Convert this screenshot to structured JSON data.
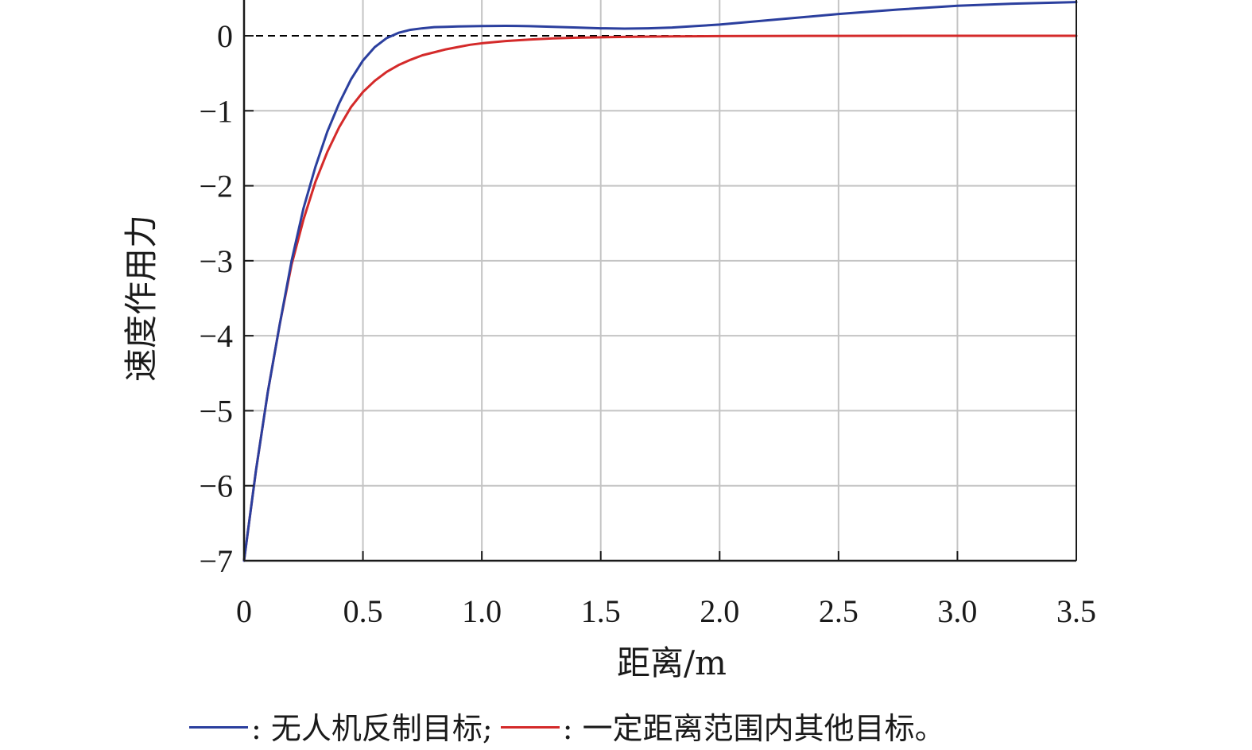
{
  "chart_data": {
    "type": "line",
    "xlabel": "距离/m",
    "ylabel": "速度作用力",
    "xlim": [
      0,
      3.5
    ],
    "ylim": [
      -7,
      0.45
    ],
    "x_ticks": [
      0,
      0.5,
      1.0,
      1.5,
      2.0,
      2.5,
      3.0,
      3.5
    ],
    "x_tick_labels": [
      "0",
      "0.5",
      "1.0",
      "1.5",
      "2.0",
      "2.5",
      "3.0",
      "3.5"
    ],
    "y_ticks": [
      0,
      -1,
      -2,
      -3,
      -4,
      -5,
      -6,
      -7
    ],
    "y_tick_labels": [
      "0",
      "−1",
      "−2",
      "−3",
      "−4",
      "−5",
      "−6",
      "−7"
    ],
    "grid": true,
    "reference_line": {
      "y": 0,
      "style": "dashed",
      "color": "#000000"
    },
    "series": [
      {
        "color": "#2b3f9e",
        "x": [
          0,
          0.05,
          0.1,
          0.15,
          0.2,
          0.25,
          0.3,
          0.35,
          0.4,
          0.45,
          0.5,
          0.55,
          0.6,
          0.65,
          0.7,
          0.75,
          0.8,
          0.85,
          0.9,
          0.95,
          1.0,
          1.05,
          1.1,
          1.15,
          1.2,
          1.3,
          1.4,
          1.5,
          1.6,
          1.7,
          1.8,
          1.9,
          2.0,
          2.25,
          2.5,
          2.75,
          3.0,
          3.25,
          3.5
        ],
        "y": [
          -7.0,
          -5.8,
          -4.75,
          -3.85,
          -3.0,
          -2.3,
          -1.75,
          -1.28,
          -0.9,
          -0.58,
          -0.33,
          -0.15,
          -0.03,
          0.04,
          0.08,
          0.1,
          0.115,
          0.12,
          0.125,
          0.127,
          0.13,
          0.131,
          0.132,
          0.131,
          0.128,
          0.12,
          0.11,
          0.1,
          0.095,
          0.1,
          0.11,
          0.13,
          0.15,
          0.22,
          0.29,
          0.35,
          0.4,
          0.43,
          0.45
        ]
      },
      {
        "color": "#d42a2a",
        "x": [
          0,
          0.05,
          0.1,
          0.15,
          0.2,
          0.25,
          0.3,
          0.35,
          0.4,
          0.45,
          0.5,
          0.55,
          0.6,
          0.65,
          0.7,
          0.75,
          0.8,
          0.85,
          0.9,
          0.95,
          1.0,
          1.1,
          1.2,
          1.3,
          1.4,
          1.5,
          1.6,
          1.8,
          2.0,
          2.5,
          3.0,
          3.5
        ],
        "y": [
          -7.0,
          -5.8,
          -4.75,
          -3.85,
          -3.05,
          -2.45,
          -1.95,
          -1.55,
          -1.22,
          -0.95,
          -0.75,
          -0.6,
          -0.48,
          -0.39,
          -0.32,
          -0.26,
          -0.22,
          -0.18,
          -0.15,
          -0.12,
          -0.1,
          -0.07,
          -0.05,
          -0.035,
          -0.025,
          -0.02,
          -0.015,
          -0.008,
          -0.004,
          -0.001,
          0.0,
          0.0
        ]
      }
    ]
  },
  "legend": {
    "items": [
      {
        "color": "#2b3f9e",
        "label": ": 无人机反制目标;"
      },
      {
        "color": "#d42a2a",
        "label": ": 一定距离范围内其他目标。"
      }
    ]
  }
}
